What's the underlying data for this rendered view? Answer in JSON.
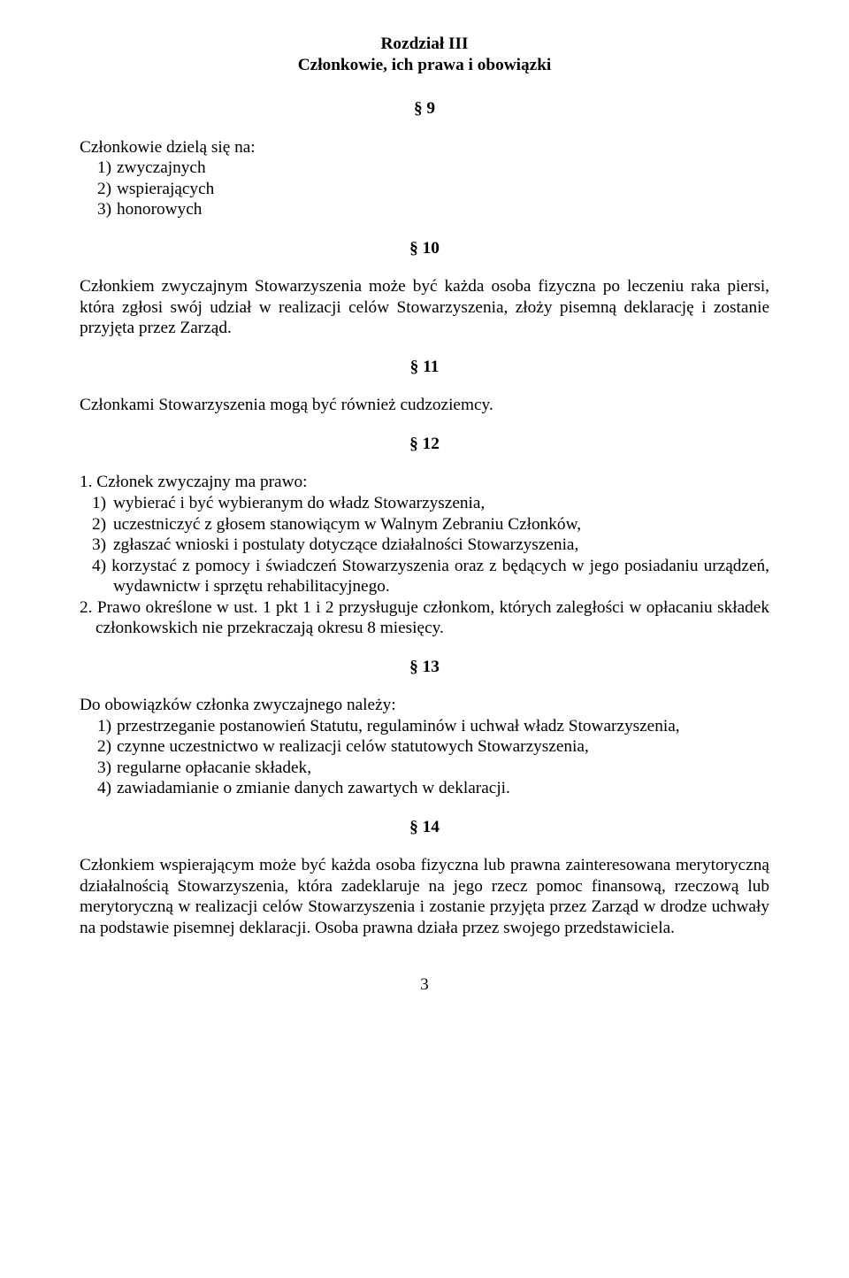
{
  "chapter": {
    "line1": "Rozdział III",
    "line2": "Członkowie, ich prawa i obowiązki"
  },
  "s9": {
    "num": "§ 9",
    "intro": "Członkowie dzielą się na:",
    "items": [
      {
        "m": "1)",
        "t": "zwyczajnych"
      },
      {
        "m": "2)",
        "t": "wspierających"
      },
      {
        "m": "3)",
        "t": "honorowych"
      }
    ]
  },
  "s10": {
    "num": "§ 10",
    "para": "Członkiem zwyczajnym Stowarzyszenia może być każda  osoba fizyczna po leczeniu raka piersi, która zgłosi swój udział w realizacji celów Stowarzyszenia, złoży pisemną deklarację i zostanie przyjęta przez Zarząd."
  },
  "s11": {
    "num": "§ 11",
    "para": "Członkami Stowarzyszenia mogą być również cudzoziemcy."
  },
  "s12": {
    "num": "§ 12",
    "p1_intro": "1. Członek zwyczajny ma prawo:",
    "items": [
      {
        "m": "1)",
        "t": "wybierać i być wybieranym do władz Stowarzyszenia,"
      },
      {
        "m": "2)",
        "t": "uczestniczyć z głosem stanowiącym w Walnym Zebraniu Członków,"
      },
      {
        "m": "3)",
        "t": "zgłaszać wnioski i postulaty dotyczące działalności Stowarzyszenia,"
      }
    ],
    "item4": {
      "m": "4) ",
      "t": "korzystać  z   pomocy  i   świadczeń   Stowarzyszenia  oraz  z  będących   w  jego posiadaniu urządzeń, wydawnictw i sprzętu rehabilitacyjnego."
    },
    "p2": "2. Prawo określone w ust. 1 pkt 1 i 2 przysługuje członkom, których zaległości w  opłacaniu składek członkowskich nie przekraczają okresu 8 miesięcy."
  },
  "s13": {
    "num": "§ 13",
    "intro": "Do obowiązków członka zwyczajnego należy:",
    "items": [
      {
        "m": "1)",
        "t": "przestrzeganie postanowień Statutu, regulaminów i uchwał władz Stowarzyszenia,"
      },
      {
        "m": "2)",
        "t": "czynne uczestnictwo w realizacji celów statutowych Stowarzyszenia,"
      },
      {
        "m": "3)",
        "t": "regularne opłacanie składek,"
      },
      {
        "m": "4)",
        "t": "zawiadamianie o zmianie danych zawartych w deklaracji."
      }
    ]
  },
  "s14": {
    "num": "§ 14",
    "para": "Członkiem wspierającym może być każda osoba fizyczna lub prawna zainteresowana merytoryczną działalnością Stowarzyszenia, która zadeklaruje na jego rzecz pomoc finansową, rzeczową lub merytoryczną w realizacji celów Stowarzyszenia i zostanie przyjęta przez Zarząd w drodze uchwały na podstawie pisemnej deklaracji. Osoba prawna działa przez swojego przedstawiciela."
  },
  "pageNumber": "3"
}
